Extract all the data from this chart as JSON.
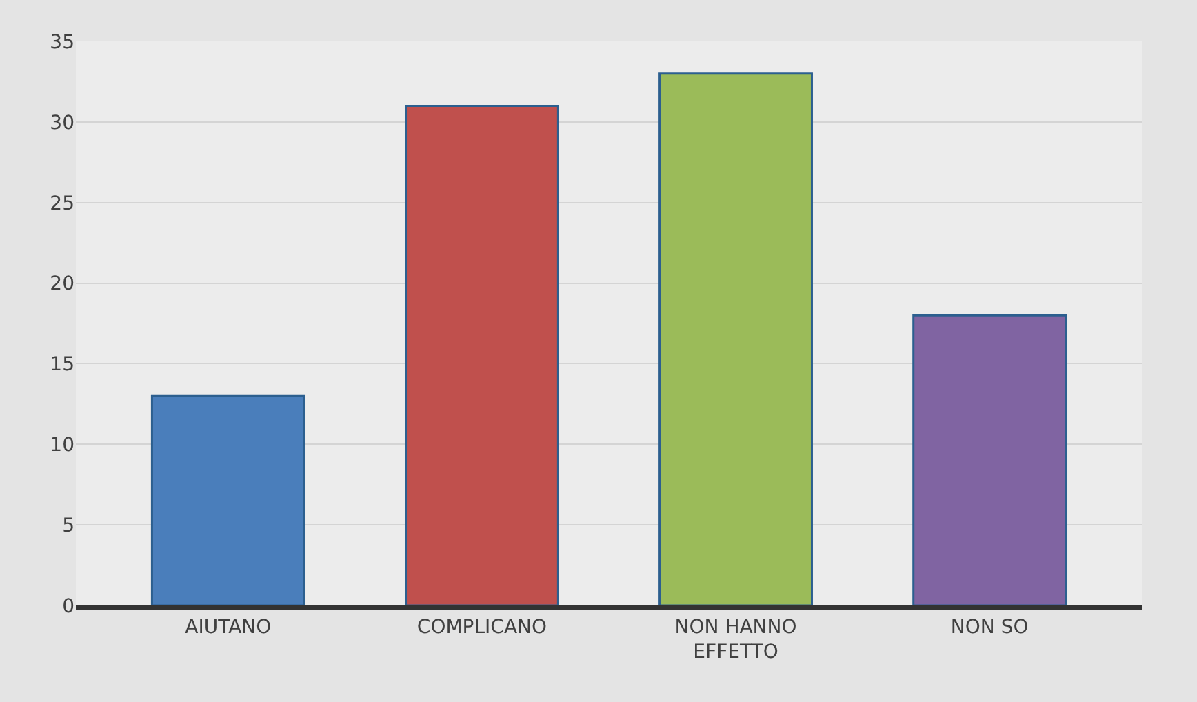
{
  "chart_data": {
    "type": "bar",
    "categories": [
      "AIUTANO",
      "COMPLICANO",
      "NON HANNO\nEFFETTO",
      "NON SO"
    ],
    "values": [
      13,
      31,
      33,
      18
    ],
    "colors": [
      "#4a7ebb",
      "#c0504d",
      "#9bbb59",
      "#8064a2"
    ],
    "ylim": [
      0,
      35
    ],
    "yticks": [
      0,
      5,
      10,
      15,
      20,
      25,
      30,
      35
    ],
    "grid": "y"
  }
}
